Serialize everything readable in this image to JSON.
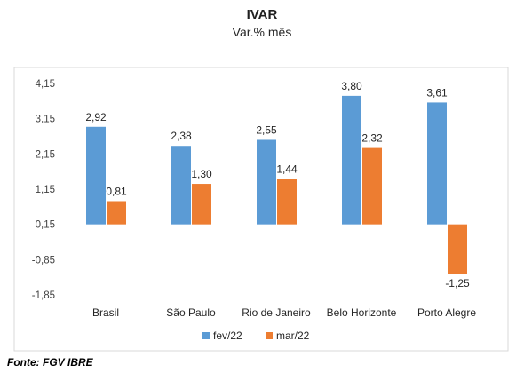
{
  "chart_data": {
    "type": "bar",
    "title": "IVAR",
    "subtitle": "Var.% mês",
    "categories": [
      "Brasil",
      "São Paulo",
      "Rio de Janeiro",
      "Belo Horizonte",
      "Porto Alegre"
    ],
    "series": [
      {
        "name": "fev/22",
        "color": "#5b9bd5",
        "values": [
          2.92,
          2.38,
          2.55,
          3.8,
          3.61
        ],
        "labels": [
          "2,92",
          "2,38",
          "2,55",
          "3,80",
          "3,61"
        ]
      },
      {
        "name": "mar/22",
        "color": "#ed7d31",
        "values": [
          0.81,
          1.3,
          1.44,
          2.32,
          -1.25
        ],
        "labels": [
          "0,81",
          "1,30",
          "1,44",
          "2,32",
          "-1,25"
        ]
      }
    ],
    "y_ticks": [
      4.15,
      3.15,
      2.15,
      1.15,
      0.15,
      -0.85,
      -1.85
    ],
    "y_tick_labels": [
      "4,15",
      "3,15",
      "2,15",
      "1,15",
      "0,15",
      "-0,85",
      "-1,85"
    ],
    "ylim": [
      -1.85,
      4.15
    ],
    "baseline": 0.15,
    "grid": false,
    "legend_position": "bottom",
    "xlabel": "",
    "ylabel": ""
  },
  "source": "Fonte: FGV IBRE"
}
